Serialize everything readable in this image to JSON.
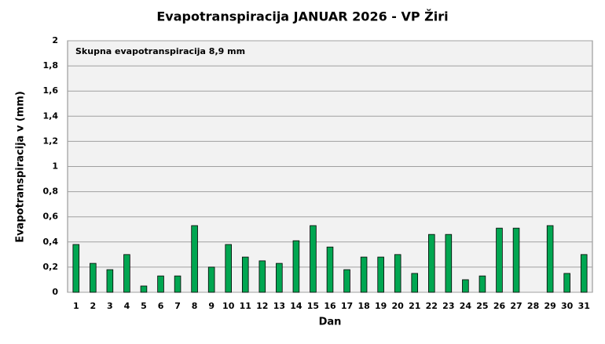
{
  "chart_data": {
    "type": "bar",
    "title": "Evapotranspiracija  JANUAR 2026 - VP Žiri",
    "annotation": "Skupna evapotranspiracija 8,9 mm",
    "x_label": "Dan",
    "y_label": "Evapotranspiracija v  (mm)",
    "categories": [
      "1",
      "2",
      "3",
      "4",
      "5",
      "6",
      "7",
      "8",
      "9",
      "10",
      "11",
      "12",
      "13",
      "14",
      "15",
      "16",
      "17",
      "18",
      "19",
      "20",
      "21",
      "22",
      "23",
      "24",
      "25",
      "26",
      "27",
      "28",
      "29",
      "30",
      "31"
    ],
    "values": [
      0.38,
      0.23,
      0.18,
      0.3,
      0.05,
      0.13,
      0.13,
      0.53,
      0.2,
      0.38,
      0.28,
      0.25,
      0.23,
      0.41,
      0.53,
      0.36,
      0.18,
      0.28,
      0.28,
      0.3,
      0.15,
      0.46,
      0.46,
      0.1,
      0.13,
      0.51,
      0.51,
      0,
      0.53,
      0.15,
      0.3
    ],
    "color": "#00a651",
    "ylim": [
      0,
      2
    ],
    "yticks": [
      0,
      {
        "value": 0.2,
        "label": "0,2"
      },
      {
        "value": 0.4,
        "label": "0,4"
      },
      {
        "value": 0.6,
        "label": "0,6"
      },
      {
        "value": 0.8,
        "label": "0,8"
      },
      1,
      {
        "value": 1.2,
        "label": "1,2"
      },
      {
        "value": 1.4,
        "label": "1,4"
      },
      {
        "value": 1.6,
        "label": "1,6"
      },
      {
        "value": 1.8,
        "label": "1,8"
      },
      2
    ],
    "grid": true
  }
}
